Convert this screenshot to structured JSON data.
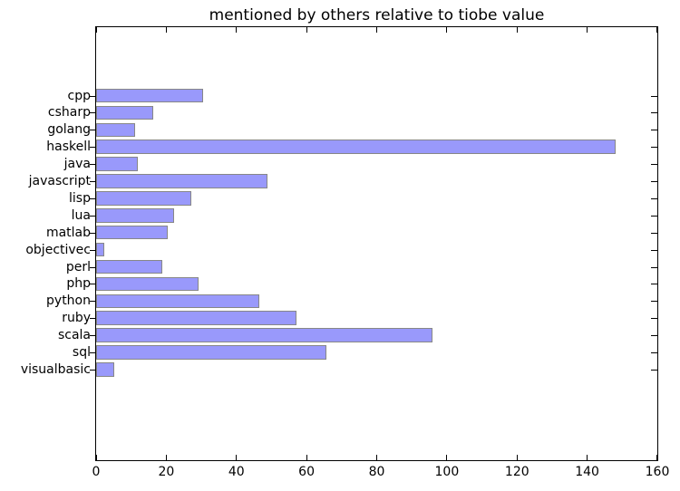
{
  "chart_data": {
    "type": "bar",
    "orientation": "horizontal",
    "title": "mentioned by others relative to tiobe value",
    "categories": [
      "cpp",
      "csharp",
      "golang",
      "haskell",
      "java",
      "javascript",
      "lisp",
      "lua",
      "matlab",
      "objectivec",
      "perl",
      "php",
      "python",
      "ruby",
      "scala",
      "sql",
      "visualbasic"
    ],
    "values": [
      30.5,
      16.3,
      11.0,
      148.2,
      12.0,
      48.8,
      27.0,
      22.2,
      20.3,
      2.3,
      18.8,
      29.1,
      46.5,
      57.1,
      95.8,
      65.6,
      5.2
    ],
    "xlabel": "",
    "ylabel": "",
    "xlim": [
      0,
      160
    ],
    "xticks": [
      0,
      20,
      40,
      60,
      80,
      100,
      120,
      140,
      160
    ],
    "grid": false,
    "legend": null,
    "bar_color": "#9999fb",
    "bar_edge_color": "#878787",
    "axis_color": "#000000",
    "background_color": "#ffffff"
  }
}
